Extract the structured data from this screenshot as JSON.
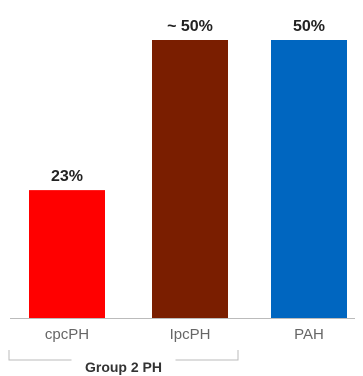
{
  "chart_data": {
    "type": "bar",
    "categories": [
      "cpcPH",
      "IpcPH",
      "PAH"
    ],
    "values": [
      23,
      50,
      50
    ],
    "data_labels": [
      "23%",
      "~ 50%",
      "50%"
    ],
    "colors": [
      "#ff0000",
      "#7a1e00",
      "#0066c0"
    ],
    "ylim": [
      0,
      55
    ],
    "grid": false,
    "axis_color": "#bbbbbb",
    "group": {
      "label": "Group 2 PH",
      "categories": [
        "cpcPH",
        "IpcPH"
      ]
    }
  }
}
